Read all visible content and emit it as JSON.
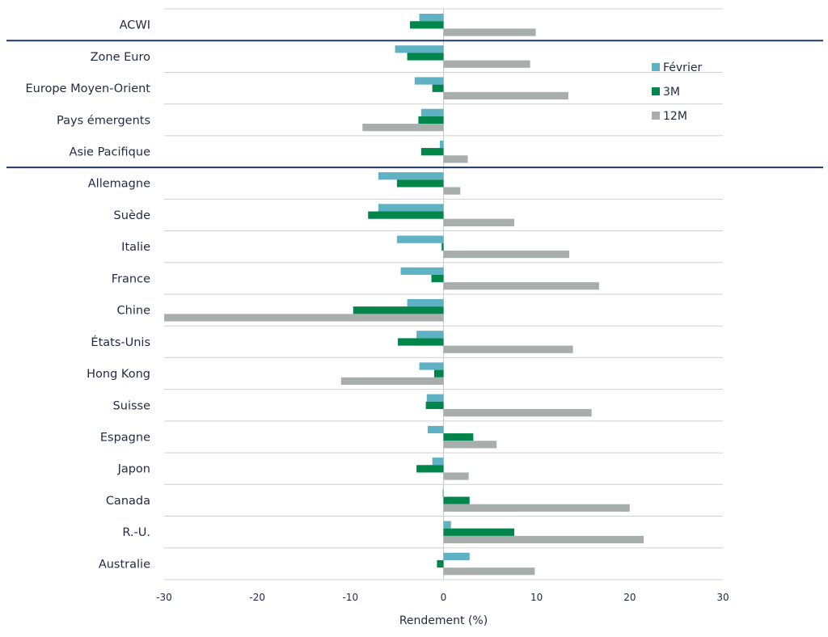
{
  "chart_data": {
    "type": "bar",
    "orientation": "horizontal",
    "categories": [
      "ACWI",
      "Zone Euro",
      "Europe Moyen-Orient",
      "Pays émergents",
      "Asie Pacifique",
      "Allemagne",
      "Suède",
      "Italie",
      "France",
      "Chine",
      "États-Unis",
      "Hong Kong",
      "Suisse",
      "Espagne",
      "Japon",
      "Canada",
      "R.-U.",
      "Australie"
    ],
    "series": [
      {
        "name": "Février",
        "color": "#5fb1c4",
        "values": [
          -2.6,
          -5.2,
          -3.1,
          -2.4,
          -0.4,
          -7.0,
          -7.0,
          -5.0,
          -4.6,
          -3.9,
          -2.9,
          -2.6,
          -1.8,
          -1.7,
          -1.2,
          -0.1,
          0.8,
          2.8
        ]
      },
      {
        "name": "3M",
        "color": "#00854a",
        "values": [
          -3.6,
          -3.9,
          -1.2,
          -2.7,
          -2.4,
          -5.0,
          -8.1,
          -0.2,
          -1.3,
          -9.7,
          -4.9,
          -1.0,
          -1.9,
          3.2,
          -2.9,
          2.8,
          7.6,
          -0.7
        ]
      },
      {
        "name": "12M",
        "color": "#a7aeab",
        "values": [
          9.9,
          9.3,
          13.4,
          -8.7,
          2.6,
          1.8,
          7.6,
          13.5,
          16.7,
          -30.0,
          13.9,
          -11.0,
          15.9,
          5.7,
          2.7,
          20.0,
          21.5,
          9.8
        ]
      }
    ],
    "xlim": [
      -30,
      30
    ],
    "xticks": [
      "-30",
      "-20",
      "-10",
      "0",
      "10",
      "20",
      "30"
    ],
    "xlabel": "Rendement (%)",
    "ylabel": "",
    "title": "",
    "grid": "horizontal separators between categories",
    "legend_position": "top-right",
    "group_separators_after": [
      "ACWI",
      "Asie Pacifique"
    ],
    "separator_color": "#1f3864"
  }
}
